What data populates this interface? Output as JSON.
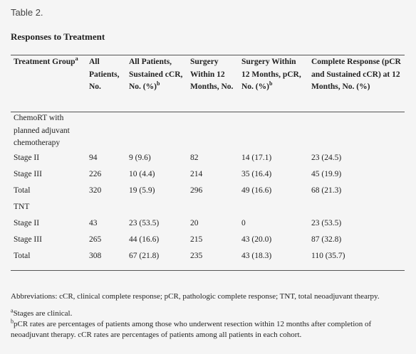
{
  "table_label": "Table 2.",
  "title": "Responses to Treatment",
  "headers": {
    "group": "Treatment Group",
    "group_sup": "a",
    "all": "All Patients, No.",
    "sustained": "All Patients, Sustained cCR, No. (%)",
    "sustained_sup": "b",
    "surgery": "Surgery Within 12 Months, No.",
    "surgery_pcr": "Surgery Within 12 Months, pCR, No. (%)",
    "surgery_pcr_sup": "b",
    "complete": "Complete Response (pCR and Sustained cCR) at 12 Months, No. (%)"
  },
  "groups": [
    {
      "name": "ChemoRT with planned adjuvant chemotherapy",
      "rows": [
        {
          "label": "Stage II",
          "all": "94",
          "sustained": "9 (9.6)",
          "surgery": "82",
          "surgery_pcr": "14 (17.1)",
          "complete": "23 (24.5)"
        },
        {
          "label": "Stage III",
          "all": "226",
          "sustained": "10 (4.4)",
          "surgery": "214",
          "surgery_pcr": "35 (16.4)",
          "complete": "45 (19.9)"
        },
        {
          "label": "Total",
          "all": "320",
          "sustained": "19 (5.9)",
          "surgery": "296",
          "surgery_pcr": "49 (16.6)",
          "complete": "68 (21.3)"
        }
      ]
    },
    {
      "name": "TNT",
      "rows": [
        {
          "label": "Stage II",
          "all": "43",
          "sustained": "23 (53.5)",
          "surgery": "20",
          "surgery_pcr": "0",
          "complete": "23 (53.5)"
        },
        {
          "label": "Stage III",
          "all": "265",
          "sustained": "44 (16.6)",
          "surgery": "215",
          "surgery_pcr": "43 (20.0)",
          "complete": "87 (32.8)"
        },
        {
          "label": "Total",
          "all": "308",
          "sustained": "67 (21.8)",
          "surgery": "235",
          "surgery_pcr": "43 (18.3)",
          "complete": "110 (35.7)"
        }
      ]
    }
  ],
  "footnotes": {
    "abbreviations": "Abbreviations: cCR, clinical complete response; pCR, pathologic complete response; TNT, total neoadjuvant thearpy.",
    "a_mark": "a",
    "a_text": "Stages are clinical.",
    "b_mark": "b",
    "b_text": "pCR rates are percentages of patients among those who underwent resection within 12 months after completion of neoadjuvant therapy. cCR rates are percentages of patients among all patients in each cohort."
  }
}
